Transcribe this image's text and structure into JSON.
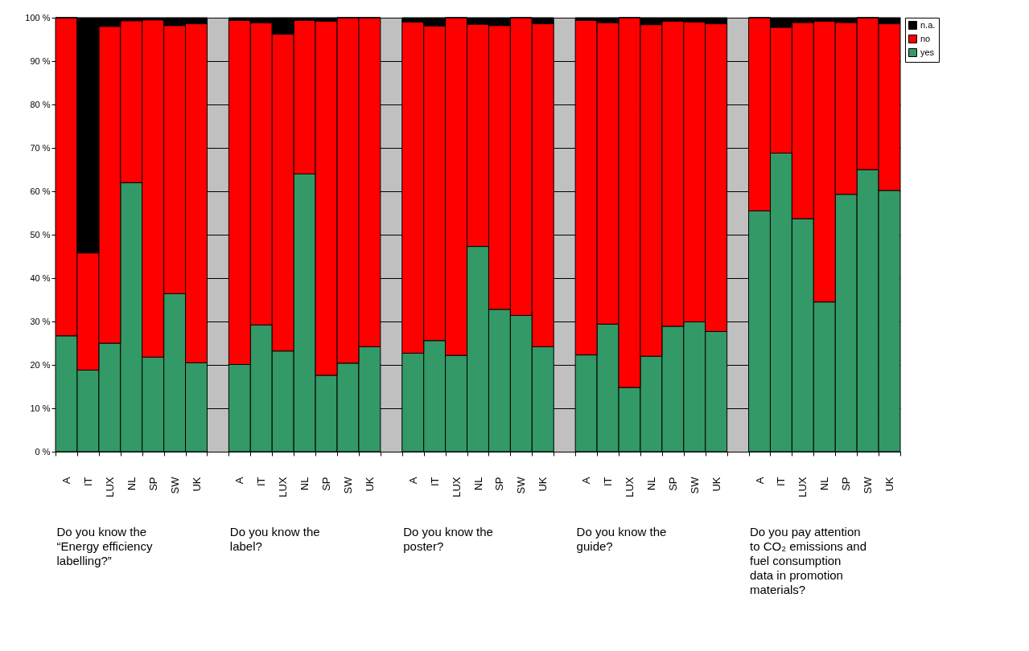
{
  "chart_data": {
    "type": "bar",
    "stacked": true,
    "categories": [
      "A",
      "IT",
      "LUX",
      "NL",
      "SP",
      "SW",
      "UK",
      null,
      "A",
      "IT",
      "LUX",
      "NL",
      "SP",
      "SW",
      "UK",
      null,
      "A",
      "IT",
      "LUX",
      "NL",
      "SP",
      "SW",
      "UK",
      null,
      "A",
      "IT",
      "LUX",
      "NL",
      "SP",
      "SW",
      "UK",
      null,
      "A",
      "IT",
      "LUX",
      "NL",
      "SP",
      "SW",
      "UK"
    ],
    "series": [
      {
        "name": "yes",
        "color": "#339966",
        "values": [
          26.7,
          18.8,
          25,
          62,
          21.8,
          36.4,
          20.5,
          null,
          20.1,
          29.2,
          23.2,
          64,
          17.6,
          20.4,
          24.2,
          null,
          22.7,
          25.6,
          22.2,
          47.3,
          32.8,
          31.4,
          24.2,
          null,
          22.3,
          29.4,
          14.8,
          22,
          28.9,
          29.9,
          27.7,
          null,
          55.5,
          68.8,
          53.7,
          34.5,
          59.3,
          65,
          60.2
        ]
      },
      {
        "name": "no",
        "color": "#ff0000",
        "values": [
          73.3,
          27,
          73,
          37.3,
          77.7,
          61.8,
          78.1,
          null,
          79.3,
          69.6,
          73,
          35.4,
          81.6,
          79.6,
          75.8,
          null,
          76.3,
          72.5,
          77.8,
          51.2,
          65.4,
          68.6,
          74.4,
          null,
          77.1,
          69.4,
          85.2,
          76.4,
          70.3,
          69.1,
          70.9,
          null,
          44.5,
          29,
          45.2,
          64.7,
          39.6,
          35,
          38.4
        ]
      },
      {
        "name": "n.a.",
        "color": "#000000",
        "values": [
          0,
          54.2,
          2,
          0.7,
          0.5,
          1.8,
          1.4,
          null,
          0.6,
          1.2,
          3.8,
          0.6,
          0.8,
          0,
          0,
          null,
          1,
          1.9,
          0,
          1.5,
          1.8,
          0,
          1.4,
          null,
          0.6,
          1.2,
          0,
          1.6,
          0.8,
          1,
          1.4,
          null,
          0,
          2.2,
          1.1,
          0.8,
          1.1,
          0,
          1.4
        ]
      }
    ],
    "ylim": [
      0,
      100
    ],
    "yticks": [
      {
        "value": 0,
        "label": "0 %"
      },
      {
        "value": 10,
        "label": "10 %"
      },
      {
        "value": 20,
        "label": "20 %"
      },
      {
        "value": 30,
        "label": "30 %"
      },
      {
        "value": 40,
        "label": "40 %"
      },
      {
        "value": 50,
        "label": "50 %"
      },
      {
        "value": 60,
        "label": "60 %"
      },
      {
        "value": 70,
        "label": "70 %"
      },
      {
        "value": 80,
        "label": "80 %"
      },
      {
        "value": 90,
        "label": "90 %"
      },
      {
        "value": 100,
        "label": "100 %"
      }
    ],
    "grid": "y",
    "legend": "right",
    "annotations": [
      "Do you know the “Energy efficiency labelling?”",
      "Do you know the label?",
      "Do you know the poster?",
      "Do you know the guide?",
      "Do you pay attention to CO₂ emissions and fuel consumption data in promotion materials?"
    ]
  }
}
